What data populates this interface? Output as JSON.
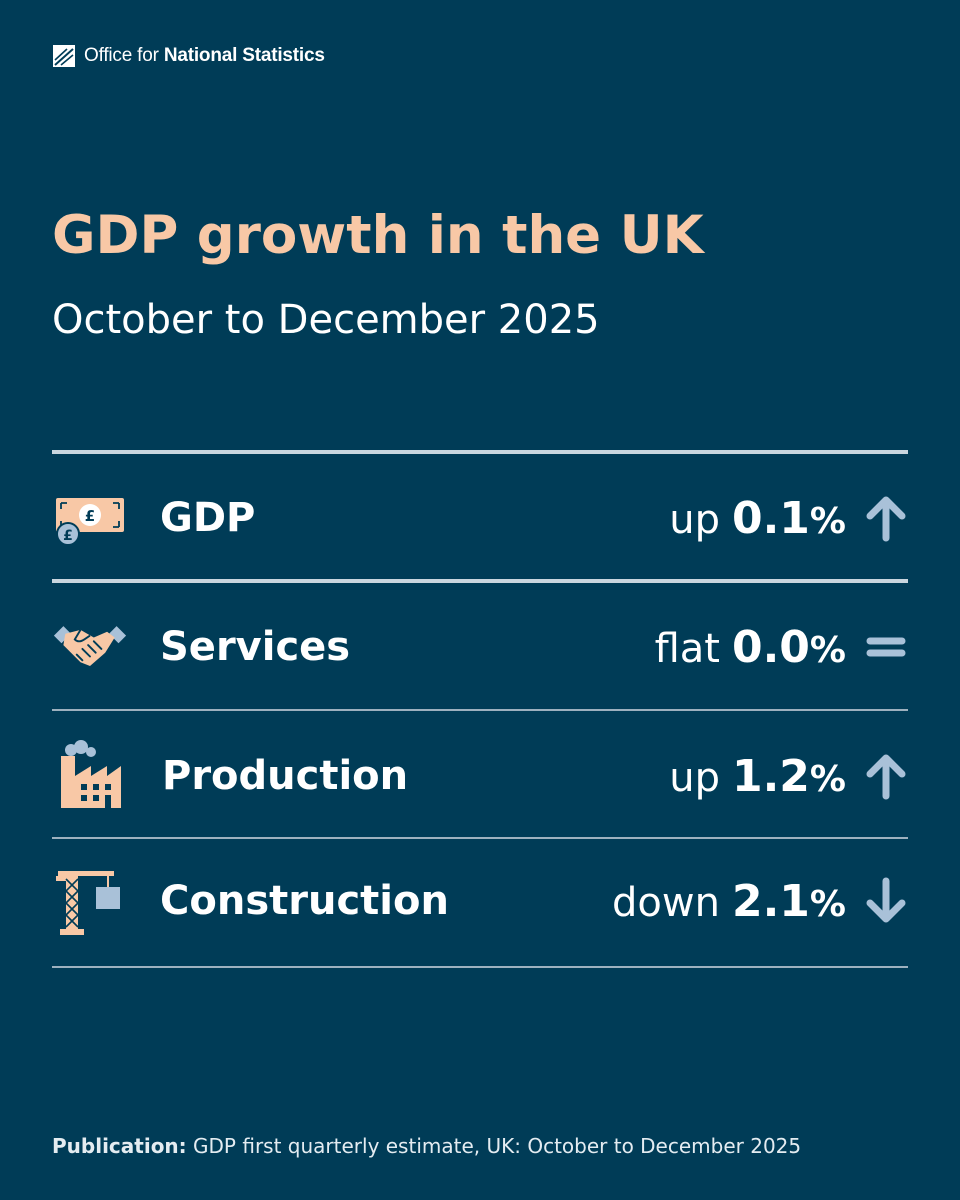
{
  "brand": {
    "name_prefix": "Office for",
    "name_strong": "National Statistics",
    "logo_icon": "ons-logo-icon"
  },
  "title": "GDP growth in the UK",
  "subtitle": "October to December 2025",
  "colors": {
    "background": "#003C57",
    "title": "#F8C8A6",
    "icon_peach": "#F8C8A6",
    "icon_blue": "#A9C1D8",
    "arrow": "#A9C1D8",
    "rule": "#C9D6DF"
  },
  "rows": [
    {
      "label": "GDP",
      "direction": "up",
      "value": "0.1",
      "unit": "%",
      "icon": "banknote-icon",
      "arrow": "arrow-up-icon"
    },
    {
      "label": "Services",
      "direction": "flat",
      "value": "0.0",
      "unit": "%",
      "icon": "handshake-icon",
      "arrow": "equals-icon"
    },
    {
      "label": "Production",
      "direction": "up",
      "value": "1.2",
      "unit": "%",
      "icon": "factory-icon",
      "arrow": "arrow-up-icon"
    },
    {
      "label": "Construction",
      "direction": "down",
      "value": "2.1",
      "unit": "%",
      "icon": "crane-icon",
      "arrow": "arrow-down-icon"
    }
  ],
  "footer": {
    "label": "Publication:",
    "text": "GDP first quarterly estimate, UK: October to December 2025"
  }
}
